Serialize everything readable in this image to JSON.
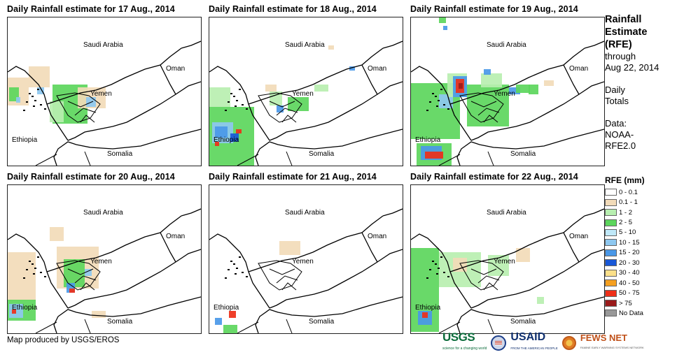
{
  "panels": [
    {
      "title": "Daily Rainfall estimate for 17 Aug., 2014",
      "day": 17
    },
    {
      "title": "Daily Rainfall estimate for 18 Aug., 2014",
      "day": 18
    },
    {
      "title": "Daily Rainfall estimate for 19 Aug., 2014",
      "day": 19
    },
    {
      "title": "Daily Rainfall estimate for 20 Aug., 2014",
      "day": 20
    },
    {
      "title": "Daily Rainfall estimate for 21 Aug., 2014",
      "day": 21
    },
    {
      "title": "Daily Rainfall estimate for 22 Aug., 2014",
      "day": 22
    }
  ],
  "map_labels": {
    "saudi": "Saudi Arabia",
    "oman": "Oman",
    "yemen": "Yemen",
    "ethiopia": "Ethiopia",
    "somalia": "Somalia"
  },
  "sidebar": {
    "title_line1": "Rainfall",
    "title_line2": "Estimate",
    "title_line3": "(RFE)",
    "through": "through",
    "date": "Aug 22, 2014",
    "daily": "Daily",
    "totals": "Totals",
    "data_label": "Data:",
    "data_src1": "NOAA-",
    "data_src2": "RFE2.0"
  },
  "legend": {
    "title": "RFE (mm)",
    "items": [
      {
        "label": "0 - 0.1",
        "color": "#ffffff"
      },
      {
        "label": "0.1 - 1",
        "color": "#f2dbb9"
      },
      {
        "label": "1 - 2",
        "color": "#b8efb0"
      },
      {
        "label": "2 - 5",
        "color": "#5cd65c"
      },
      {
        "label": "5 - 10",
        "color": "#bfe8f8"
      },
      {
        "label": "10 - 15",
        "color": "#8ec8f0"
      },
      {
        "label": "15 - 20",
        "color": "#4a98e8"
      },
      {
        "label": "20 - 30",
        "color": "#1858d8"
      },
      {
        "label": "30 - 40",
        "color": "#fbe08a"
      },
      {
        "label": "40 - 50",
        "color": "#f5a020"
      },
      {
        "label": "50 - 75",
        "color": "#ee2f18"
      },
      {
        "label": "> 75",
        "color": "#9b1b1b"
      },
      {
        "label": "No Data",
        "color": "#999999"
      }
    ]
  },
  "footer": {
    "credit": "Map produced by USGS/EROS",
    "usgs": "USGS",
    "usgs_tag": "science for a changing world",
    "usaid": "USAID",
    "usaid_tag": "FROM THE AMERICAN PEOPLE",
    "fews": "FEWS NET",
    "fews_tag": "FAMINE EARLY WARNING SYSTEMS NETWORK"
  }
}
